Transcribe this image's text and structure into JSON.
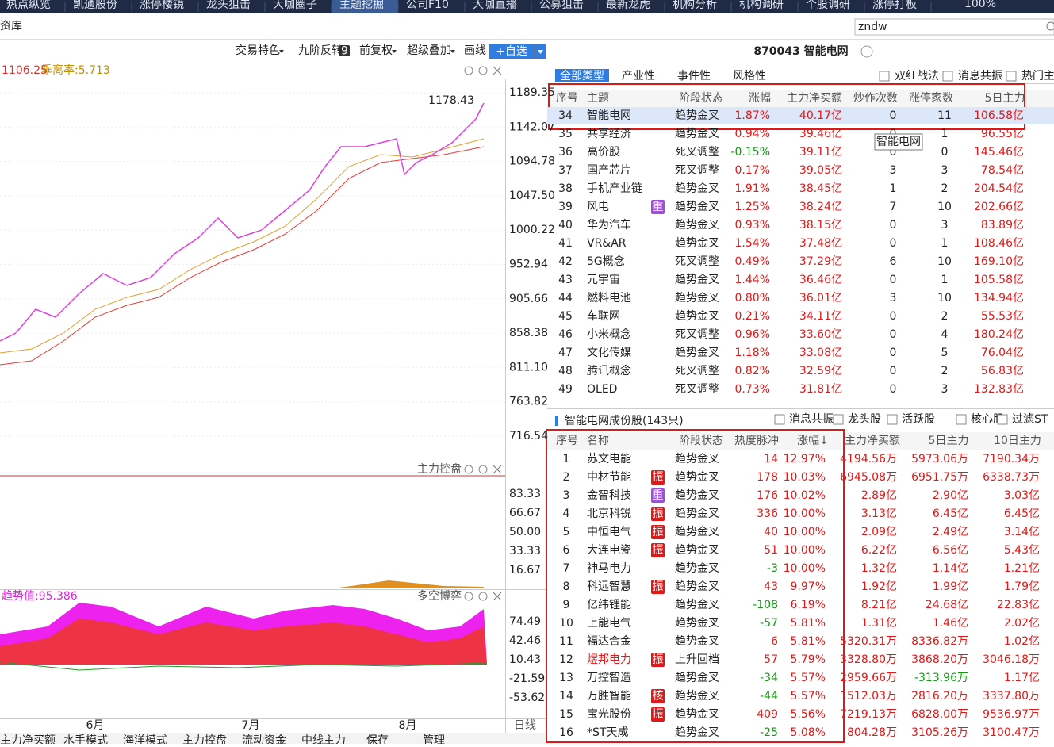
{
  "tabs": [
    "热点纵览",
    "凯通股份",
    "涨停楼镜",
    "龙头狙击",
    "大咖圈子",
    "主题挖掘",
    "公司F10",
    "大咖直播",
    "公募狙击",
    "最新龙虎",
    "机构分析",
    "机构调研",
    "个股调研",
    "涨停打板"
  ],
  "active_tab": 5,
  "zoom": "100%",
  "breadcrumb": "资库",
  "search": "zndw",
  "toolbar": {
    "items": [
      "交易特色",
      "九阶反转",
      "前复权",
      "超级叠加",
      "画线"
    ],
    "badge": "9",
    "add_button": "+自选"
  },
  "chart": {
    "info_price": "1106.25",
    "info_bias": "乖离率:5.713",
    "price_label": "1178.43",
    "yticks": [
      "1189.35",
      "1142.07",
      "1094.78",
      "1047.50",
      "1000.22",
      "952.94",
      "905.66",
      "858.38",
      "811.10",
      "763.82",
      "716.54"
    ],
    "panel2": {
      "title": "主力控盘",
      "ticks": [
        "83.33",
        "66.67",
        "50.00",
        "33.33",
        "16.67"
      ]
    },
    "panel3": {
      "title": "多空博弈",
      "label": "趋势值:95.386",
      "ticks": [
        "74.49",
        "42.46",
        "10.43",
        "-21.59",
        "-53.62"
      ]
    },
    "x_labels": [
      "6月",
      "7月",
      "8月"
    ],
    "period": "日线"
  },
  "bottom_tabs": [
    "主力净买额",
    "水手模式",
    "海洋模式",
    "主力控盘",
    "流动资金",
    "中线主力",
    "保存",
    "管理"
  ],
  "right": {
    "title": "870043 智能电网",
    "type_tabs": [
      "全部类型",
      "产业性",
      "事件性",
      "风格性"
    ],
    "filters": [
      "双红战法",
      "消息共振",
      "热门主题"
    ],
    "tooltip": "智能电网",
    "theme_table": {
      "columns": [
        "序号",
        "主题",
        "阶段状态",
        "涨幅",
        "主力净买额",
        "炒作次数",
        "涨停家数",
        "5日主力"
      ],
      "rows": [
        [
          "34",
          "智能电网",
          null,
          "趋势金叉",
          "1.87%",
          "40.17亿",
          "0",
          "11",
          "106.58亿"
        ],
        [
          "35",
          "共享经济",
          null,
          "趋势金叉",
          "0.94%",
          "39.46亿",
          "0",
          "1",
          "96.55亿"
        ],
        [
          "36",
          "高价股",
          null,
          "死叉调整",
          "-0.15%",
          "39.11亿",
          "0",
          "0",
          "145.46亿"
        ],
        [
          "37",
          "国产芯片",
          null,
          "死叉调整",
          "0.17%",
          "39.05亿",
          "3",
          "3",
          "78.54亿"
        ],
        [
          "38",
          "手机产业链",
          null,
          "趋势金叉",
          "1.91%",
          "38.45亿",
          "1",
          "2",
          "204.54亿"
        ],
        [
          "39",
          "风电",
          "重",
          "趋势金叉",
          "1.25%",
          "38.24亿",
          "7",
          "10",
          "202.66亿"
        ],
        [
          "40",
          "华为汽车",
          null,
          "趋势金叉",
          "0.93%",
          "38.15亿",
          "0",
          "3",
          "83.89亿"
        ],
        [
          "41",
          "VR&AR",
          null,
          "趋势金叉",
          "1.54%",
          "37.48亿",
          "0",
          "1",
          "108.46亿"
        ],
        [
          "42",
          "5G概念",
          null,
          "死叉调整",
          "0.49%",
          "37.29亿",
          "6",
          "10",
          "169.10亿"
        ],
        [
          "43",
          "元宇宙",
          null,
          "趋势金叉",
          "1.44%",
          "36.46亿",
          "0",
          "1",
          "105.58亿"
        ],
        [
          "44",
          "燃料电池",
          null,
          "趋势金叉",
          "0.80%",
          "36.01亿",
          "3",
          "10",
          "134.94亿"
        ],
        [
          "45",
          "车联网",
          null,
          "趋势金叉",
          "0.21%",
          "34.11亿",
          "0",
          "2",
          "55.53亿"
        ],
        [
          "46",
          "小米概念",
          null,
          "死叉调整",
          "0.96%",
          "33.60亿",
          "0",
          "4",
          "180.24亿"
        ],
        [
          "47",
          "文化传媒",
          null,
          "趋势金叉",
          "1.18%",
          "33.08亿",
          "0",
          "5",
          "76.04亿"
        ],
        [
          "48",
          "腾讯概念",
          null,
          "死叉调整",
          "0.82%",
          "32.59亿",
          "0",
          "2",
          "56.83亿"
        ],
        [
          "49",
          "OLED",
          null,
          "死叉调整",
          "0.73%",
          "31.81亿",
          "0",
          "3",
          "132.83亿"
        ]
      ],
      "selected_row": 0
    },
    "stock_section": {
      "title": "智能电网成份股(143只)",
      "filters": [
        "消息共振",
        "龙头股",
        "活跃股",
        "核心股",
        "过滤ST"
      ],
      "columns": [
        "序号",
        "名称",
        "阶段状态",
        "热度脉冲",
        "涨幅↓",
        "主力净买额",
        "5日主力",
        "10日主力"
      ],
      "rows": [
        [
          "1",
          "苏文电能",
          null,
          "趋势金叉",
          "14",
          "12.97%",
          "4194.56万",
          "5973.06万",
          "7190.34万"
        ],
        [
          "2",
          "中材节能",
          "振",
          "趋势金叉",
          "178",
          "10.03%",
          "6945.08万",
          "6951.75万",
          "6338.73万"
        ],
        [
          "3",
          "金智科技",
          "重",
          "趋势金叉",
          "176",
          "10.02%",
          "2.89亿",
          "2.90亿",
          "3.03亿"
        ],
        [
          "4",
          "北京科锐",
          "振",
          "趋势金叉",
          "336",
          "10.00%",
          "3.13亿",
          "6.45亿",
          "6.45亿"
        ],
        [
          "5",
          "中恒电气",
          "振",
          "趋势金叉",
          "40",
          "10.00%",
          "2.09亿",
          "2.49亿",
          "3.14亿"
        ],
        [
          "6",
          "大连电瓷",
          "振",
          "趋势金叉",
          "51",
          "10.00%",
          "6.22亿",
          "6.56亿",
          "5.43亿"
        ],
        [
          "7",
          "神马电力",
          null,
          "趋势金叉",
          "-3",
          "10.00%",
          "1.32亿",
          "1.14亿",
          "1.21亿"
        ],
        [
          "8",
          "科远智慧",
          "振",
          "趋势金叉",
          "43",
          "9.97%",
          "1.92亿",
          "1.99亿",
          "1.79亿"
        ],
        [
          "9",
          "亿纬锂能",
          null,
          "趋势金叉",
          "-108",
          "6.19%",
          "8.21亿",
          "24.68亿",
          "22.83亿"
        ],
        [
          "10",
          "上能电气",
          null,
          "趋势金叉",
          "-57",
          "5.81%",
          "1.31亿",
          "1.46亿",
          "2.02亿"
        ],
        [
          "11",
          "福达合金",
          null,
          "趋势金叉",
          "6",
          "5.81%",
          "5320.31万",
          "8336.82万",
          "1.02亿"
        ],
        [
          "12",
          "煜邦电力",
          "振",
          "上升回档",
          "57",
          "5.79%",
          "3328.80万",
          "3868.20万",
          "3046.18万"
        ],
        [
          "13",
          "万控智造",
          null,
          "趋势金叉",
          "-34",
          "5.57%",
          "2959.66万",
          "-313.96万",
          "1.17亿"
        ],
        [
          "14",
          "万胜智能",
          "核",
          "趋势金叉",
          "-44",
          "5.57%",
          "1512.03万",
          "2816.20万",
          "3337.80万"
        ],
        [
          "15",
          "宝光股份",
          "振",
          "趋势金叉",
          "409",
          "5.56%",
          "7219.13万",
          "6828.00万",
          "9536.97万"
        ],
        [
          "16",
          "*ST天成",
          null,
          "趋势金叉",
          "-25",
          "5.08%",
          "804.28万",
          "3105.26万",
          "3100.47万"
        ]
      ],
      "highlighted_names": [
        11
      ]
    }
  }
}
